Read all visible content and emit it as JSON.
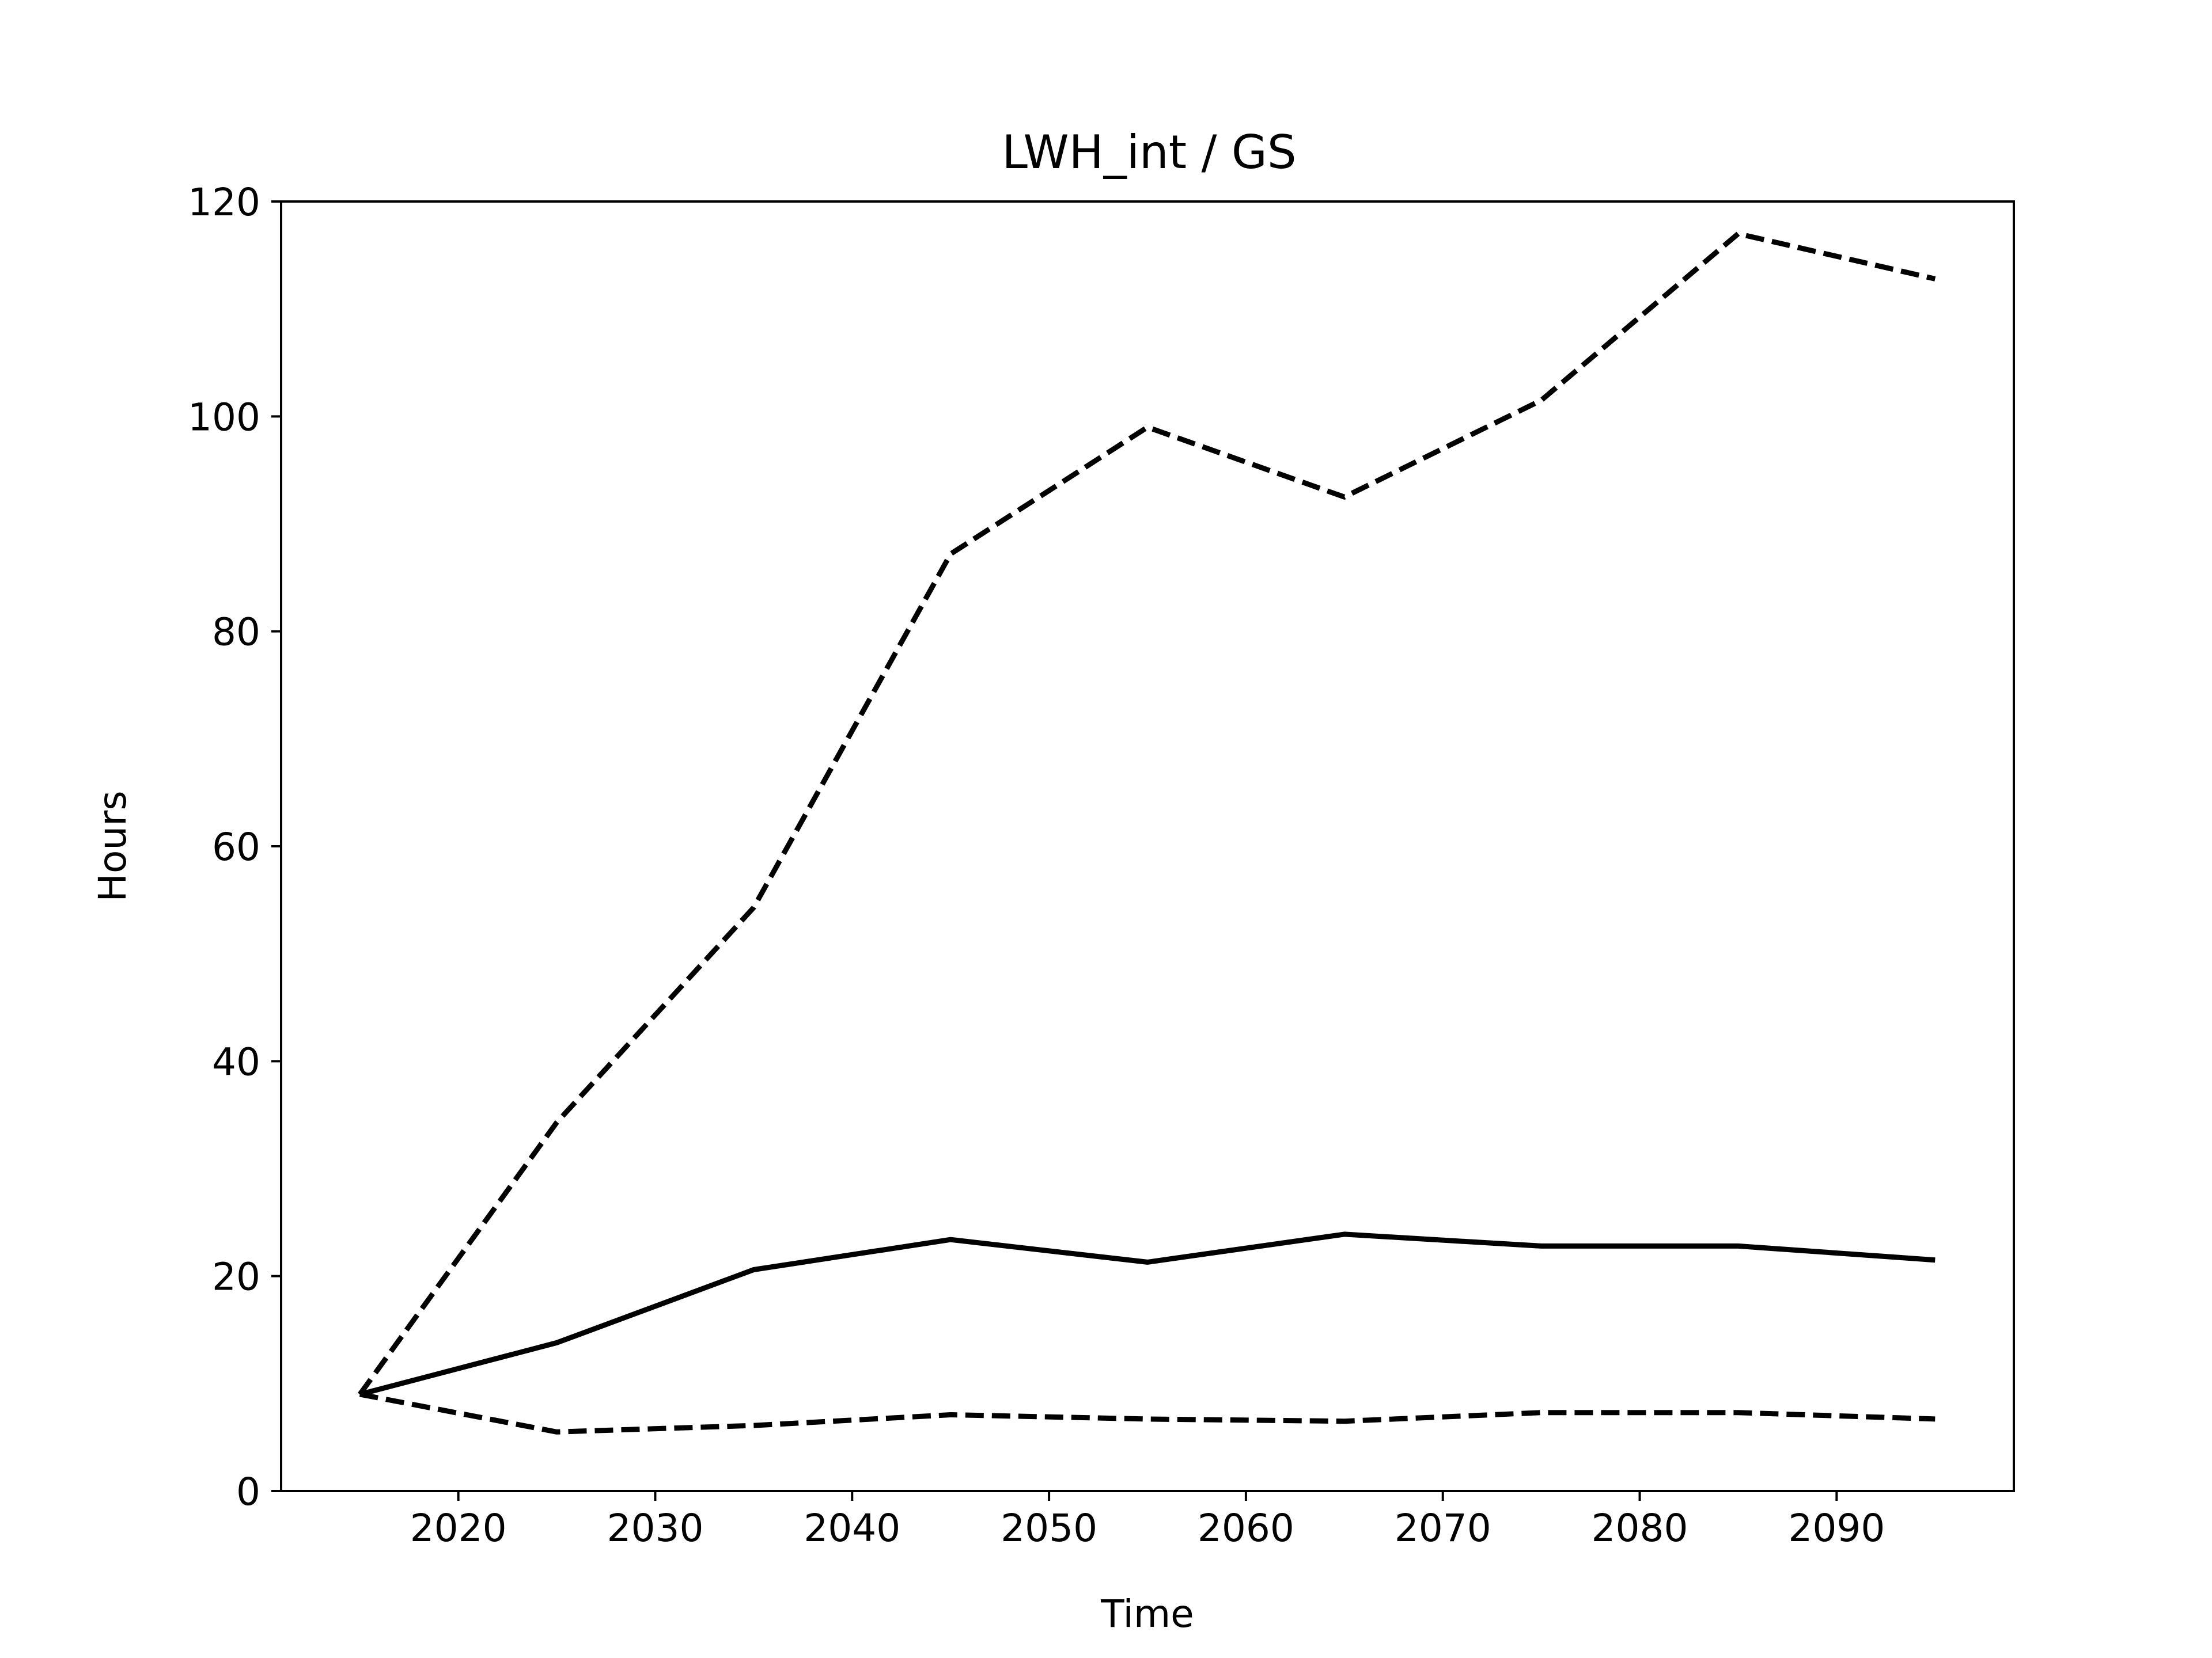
{
  "chart_data": {
    "type": "line",
    "title": "LWH_int / GS",
    "xlabel": "Time",
    "ylabel": "Hours",
    "xlim": [
      2011,
      2099
    ],
    "ylim": [
      0,
      120
    ],
    "xticks": [
      2020,
      2030,
      2040,
      2050,
      2060,
      2070,
      2080,
      2090
    ],
    "yticks": [
      0,
      20,
      40,
      60,
      80,
      100,
      120
    ],
    "grid": false,
    "legend": "none",
    "x": [
      2015,
      2025,
      2035,
      2045,
      2055,
      2065,
      2075,
      2085,
      2095
    ],
    "series": [
      {
        "style": "solid",
        "color": "#000000",
        "values": [
          9.0,
          13.8,
          20.6,
          23.4,
          21.3,
          23.9,
          22.8,
          22.8,
          21.5
        ]
      },
      {
        "style": "dashed",
        "color": "#000000",
        "values": [
          9.0,
          34.3,
          54.3,
          87.2,
          99.0,
          92.5,
          101.5,
          117.0,
          112.8
        ]
      },
      {
        "style": "dashed",
        "color": "#000000",
        "values": [
          9.0,
          5.5,
          6.1,
          7.1,
          6.7,
          6.5,
          7.3,
          7.3,
          6.7
        ]
      }
    ]
  }
}
